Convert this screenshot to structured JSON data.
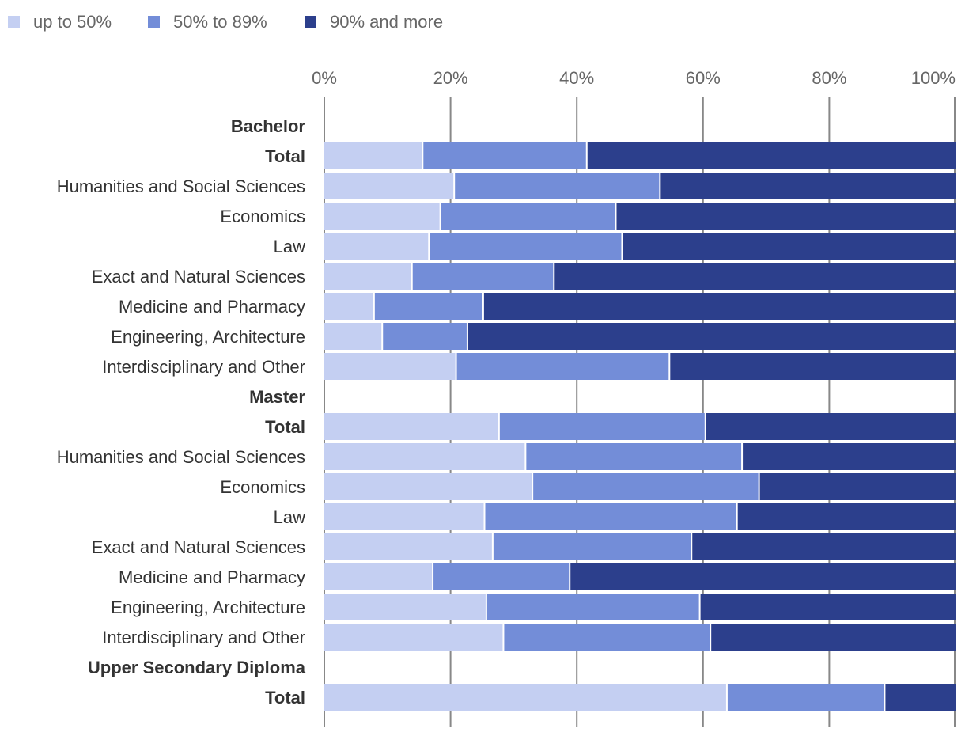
{
  "chart_data": {
    "type": "bar",
    "orientation": "horizontal",
    "stacked": true,
    "xlim": [
      0,
      100
    ],
    "x_ticks": [
      "0%",
      "20%",
      "40%",
      "60%",
      "80%",
      "100%"
    ],
    "grid": true,
    "legend_position": "top-left",
    "series": [
      {
        "name": "up to 50%",
        "color": "#c4cff2"
      },
      {
        "name": "50% to 89%",
        "color": "#738dd8"
      },
      {
        "name": "90% and more",
        "color": "#2c3f8c"
      }
    ],
    "rows": [
      {
        "label": "Bachelor",
        "group": true
      },
      {
        "label": "Total",
        "bold": true,
        "values": [
          15.7,
          26.0,
          58.3
        ]
      },
      {
        "label": "Humanities and Social Sciences",
        "values": [
          20.7,
          32.6,
          46.7
        ]
      },
      {
        "label": "Economics",
        "values": [
          18.5,
          27.8,
          53.7
        ]
      },
      {
        "label": "Law",
        "values": [
          16.7,
          30.6,
          52.7
        ]
      },
      {
        "label": "Exact and Natural Sciences",
        "values": [
          14.0,
          22.5,
          63.5
        ]
      },
      {
        "label": "Medicine and Pharmacy",
        "values": [
          8.0,
          17.3,
          74.7
        ]
      },
      {
        "label": "Engineering, Architecture",
        "values": [
          9.3,
          13.5,
          77.2
        ]
      },
      {
        "label": "Interdisciplinary and Other",
        "values": [
          21.0,
          33.8,
          45.2
        ]
      },
      {
        "label": "Master",
        "group": true
      },
      {
        "label": "Total",
        "bold": true,
        "values": [
          27.8,
          32.7,
          39.5
        ]
      },
      {
        "label": "Humanities and Social Sciences",
        "values": [
          32.0,
          34.3,
          33.7
        ]
      },
      {
        "label": "Economics",
        "values": [
          33.1,
          35.9,
          31.0
        ]
      },
      {
        "label": "Law",
        "values": [
          25.5,
          40.0,
          34.5
        ]
      },
      {
        "label": "Exact and Natural Sciences",
        "values": [
          26.8,
          31.5,
          41.7
        ]
      },
      {
        "label": "Medicine and Pharmacy",
        "values": [
          17.3,
          21.7,
          61.0
        ]
      },
      {
        "label": "Engineering, Architecture",
        "values": [
          25.8,
          33.8,
          40.4
        ]
      },
      {
        "label": "Interdisciplinary and Other",
        "values": [
          28.5,
          32.8,
          38.7
        ]
      },
      {
        "label": "Upper Secondary Diploma",
        "group": true
      },
      {
        "label": "Total",
        "bold": true,
        "values": [
          63.9,
          25.0,
          11.1
        ]
      }
    ]
  }
}
